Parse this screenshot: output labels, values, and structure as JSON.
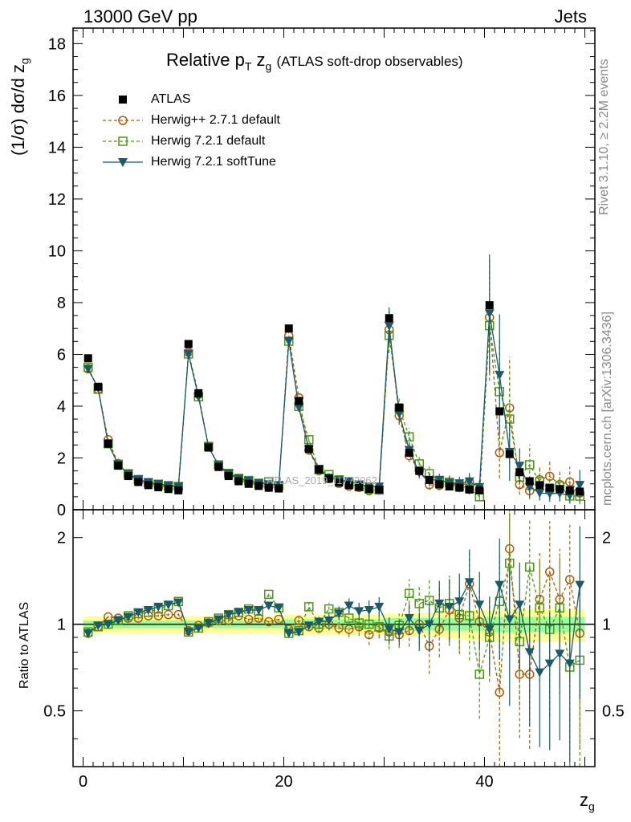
{
  "header": {
    "left": "13000 GeV pp",
    "right": "Jets"
  },
  "title": {
    "main": "Relative p",
    "sub_t": "T",
    "z": " z",
    "sub_g": "g",
    "paren": "(ATLAS soft-drop observables)"
  },
  "side": {
    "rivet": "Rivet 3.1.10, ≥ 2.2M events",
    "mcplots": "mcplots.cern.ch [arXiv:1306.3436]"
  },
  "watermark": "ATLAS_2019_I1772062",
  "axes": {
    "ylabel_main": "(1/σ) dσ/d z",
    "ylabel_main_sub": "g",
    "ylabel_ratio": "Ratio to ATLAS",
    "xlabel": "z",
    "xlabel_sub": "g"
  },
  "legend": [
    {
      "name": "ATLAS",
      "color": "#000000",
      "marker": "square-filled"
    },
    {
      "name": "Herwig++ 2.7.1 default",
      "color": "#b35a00",
      "marker": "circle-open"
    },
    {
      "name": "Herwig 7.2.1 default",
      "color": "#4a9a12",
      "marker": "square-open"
    },
    {
      "name": "Herwig 7.2.1 softTune",
      "color": "#1a5a6a",
      "marker": "triangle-down"
    }
  ],
  "chart_data": {
    "type": "line",
    "xlim": [
      -1,
      51
    ],
    "ylim_main": [
      0,
      18.6
    ],
    "ylim_ratio": [
      0.32,
      2.5
    ],
    "x_ticks_major": [
      0,
      20,
      40
    ],
    "y_ticks_main": [
      0,
      2,
      4,
      6,
      8,
      10,
      12,
      14,
      16,
      18
    ],
    "y_ticks_ratio": [
      0.5,
      1,
      2
    ],
    "x": [
      0.5,
      1.5,
      2.5,
      3.5,
      4.5,
      5.5,
      6.5,
      7.5,
      8.5,
      9.5,
      10.5,
      11.5,
      12.5,
      13.5,
      14.5,
      15.5,
      16.5,
      17.5,
      18.5,
      19.5,
      20.5,
      21.5,
      22.5,
      23.5,
      24.5,
      25.5,
      26.5,
      27.5,
      28.5,
      29.5,
      30.5,
      31.5,
      32.5,
      33.5,
      34.5,
      35.5,
      36.5,
      37.5,
      38.5,
      39.5,
      40.5,
      41.5,
      42.5,
      43.5,
      44.5,
      45.5,
      46.5,
      47.5,
      48.5,
      49.5
    ],
    "data": {
      "name": "ATLAS",
      "values": [
        5.85,
        4.75,
        2.55,
        1.7,
        1.3,
        1.07,
        0.95,
        0.87,
        0.8,
        0.75,
        6.4,
        4.5,
        2.4,
        1.65,
        1.3,
        1.1,
        1.0,
        0.92,
        0.85,
        0.82,
        7.0,
        4.2,
        2.35,
        1.55,
        1.2,
        1.05,
        0.95,
        0.88,
        0.8,
        0.78,
        7.4,
        3.95,
        2.2,
        1.5,
        1.15,
        0.98,
        0.9,
        0.85,
        0.78,
        0.75,
        7.9,
        3.8,
        2.15,
        1.45,
        1.1,
        0.95,
        0.85,
        0.8,
        0.75,
        0.7
      ],
      "band_stat": [
        0.03,
        0.03,
        0.03,
        0.03,
        0.03,
        0.03,
        0.03,
        0.03,
        0.03,
        0.03,
        0.03,
        0.03,
        0.03,
        0.03,
        0.03,
        0.03,
        0.03,
        0.03,
        0.03,
        0.03,
        0.04,
        0.04,
        0.04,
        0.04,
        0.04,
        0.04,
        0.04,
        0.04,
        0.04,
        0.04,
        0.05,
        0.05,
        0.05,
        0.05,
        0.05,
        0.05,
        0.05,
        0.05,
        0.05,
        0.05,
        0.06,
        0.06,
        0.06,
        0.06,
        0.06,
        0.06,
        0.06,
        0.06,
        0.06,
        0.06
      ],
      "band_tot": [
        0.07,
        0.07,
        0.07,
        0.07,
        0.07,
        0.07,
        0.07,
        0.07,
        0.07,
        0.07,
        0.07,
        0.07,
        0.07,
        0.07,
        0.07,
        0.07,
        0.07,
        0.07,
        0.07,
        0.07,
        0.08,
        0.08,
        0.08,
        0.08,
        0.08,
        0.08,
        0.08,
        0.08,
        0.08,
        0.08,
        0.09,
        0.09,
        0.09,
        0.09,
        0.1,
        0.1,
        0.11,
        0.11,
        0.12,
        0.12,
        0.12,
        0.13,
        0.13,
        0.13,
        0.13,
        0.13,
        0.13,
        0.13,
        0.13,
        0.13
      ]
    },
    "series": [
      {
        "name": "Herwig++ 2.7.1 default",
        "color": "#b35a00",
        "ratio": [
          0.93,
          0.98,
          1.06,
          1.05,
          1.05,
          1.05,
          1.07,
          1.07,
          1.08,
          1.08,
          0.95,
          0.99,
          1.01,
          1.03,
          1.03,
          1.07,
          1.04,
          1.05,
          1.02,
          1.04,
          0.96,
          1.03,
          0.98,
          0.97,
          1.0,
          0.97,
          0.96,
          0.98,
          0.92,
          0.97,
          0.94,
          0.92,
          0.95,
          1.0,
          0.84,
          0.96,
          1.12,
          1.05,
          1.38,
          1.02,
          0.94,
          0.58,
          1.83,
          0.67,
          0.67,
          1.22,
          1.52,
          1.22,
          1.43,
          0.93
        ],
        "rel_err": [
          0.01,
          0.01,
          0.01,
          0.01,
          0.01,
          0.01,
          0.01,
          0.01,
          0.01,
          0.01,
          0.01,
          0.01,
          0.01,
          0.01,
          0.01,
          0.01,
          0.02,
          0.02,
          0.02,
          0.02,
          0.02,
          0.03,
          0.03,
          0.04,
          0.05,
          0.05,
          0.06,
          0.07,
          0.08,
          0.08,
          0.1,
          0.1,
          0.12,
          0.15,
          0.2,
          0.2,
          0.25,
          0.25,
          0.3,
          0.3,
          0.3,
          0.45,
          0.5,
          0.4,
          0.45,
          0.45,
          0.5,
          0.5,
          0.55,
          0.6
        ]
      },
      {
        "name": "Herwig 7.2.1 default",
        "color": "#4a9a12",
        "ratio": [
          0.94,
          0.98,
          1.0,
          1.03,
          1.07,
          1.09,
          1.1,
          1.13,
          1.16,
          1.2,
          0.94,
          0.97,
          1.02,
          1.05,
          1.08,
          1.1,
          1.13,
          1.11,
          1.27,
          1.14,
          0.93,
          0.95,
          1.15,
          1.0,
          1.13,
          1.1,
          1.05,
          1.01,
          1.0,
          0.98,
          0.91,
          0.99,
          1.28,
          1.18,
          1.21,
          1.14,
          1.18,
          1.08,
          1.07,
          0.67,
          0.9,
          1.2,
          1.63,
          0.87,
          1.58,
          1.14,
          0.96,
          1.14,
          0.71,
          0.75
        ],
        "rel_err": [
          0.01,
          0.01,
          0.01,
          0.01,
          0.01,
          0.01,
          0.01,
          0.01,
          0.01,
          0.01,
          0.01,
          0.01,
          0.01,
          0.01,
          0.01,
          0.01,
          0.02,
          0.02,
          0.02,
          0.02,
          0.02,
          0.03,
          0.03,
          0.04,
          0.05,
          0.05,
          0.06,
          0.07,
          0.08,
          0.08,
          0.1,
          0.1,
          0.12,
          0.15,
          0.2,
          0.2,
          0.25,
          0.25,
          0.3,
          0.3,
          0.3,
          0.45,
          0.5,
          0.4,
          0.45,
          0.45,
          0.5,
          0.5,
          0.55,
          0.6
        ]
      },
      {
        "name": "Herwig 7.2.1 softTune",
        "color": "#1a5a6a",
        "ratio": [
          0.93,
          0.99,
          1.0,
          1.03,
          1.06,
          1.1,
          1.12,
          1.15,
          1.17,
          1.19,
          0.94,
          0.97,
          1.01,
          1.04,
          1.08,
          1.1,
          1.12,
          1.12,
          1.16,
          1.14,
          0.93,
          0.94,
          0.99,
          1.02,
          1.03,
          1.09,
          1.16,
          1.11,
          1.12,
          1.15,
          0.96,
          0.94,
          1.05,
          0.95,
          1.0,
          1.18,
          1.15,
          1.2,
          1.4,
          1.17,
          0.96,
          1.37,
          1.04,
          1.17,
          0.8,
          0.68,
          0.73,
          0.79,
          0.73,
          1.37
        ],
        "rel_err": [
          0.01,
          0.01,
          0.01,
          0.01,
          0.01,
          0.01,
          0.01,
          0.01,
          0.01,
          0.01,
          0.01,
          0.01,
          0.01,
          0.01,
          0.01,
          0.01,
          0.02,
          0.02,
          0.02,
          0.02,
          0.02,
          0.03,
          0.03,
          0.04,
          0.05,
          0.05,
          0.06,
          0.07,
          0.08,
          0.08,
          0.1,
          0.1,
          0.12,
          0.15,
          0.2,
          0.2,
          0.25,
          0.25,
          0.3,
          0.3,
          0.3,
          0.45,
          0.5,
          0.4,
          0.45,
          0.45,
          0.5,
          0.5,
          0.55,
          0.6
        ]
      }
    ]
  }
}
